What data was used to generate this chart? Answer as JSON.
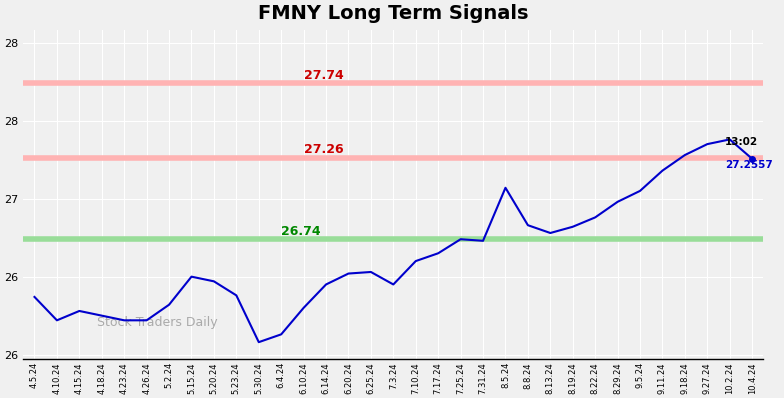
{
  "title": "FMNY Long Term Signals",
  "title_fontsize": 14,
  "title_fontweight": "bold",
  "watermark": "Stock Traders Daily",
  "line_color": "#0000cc",
  "line_width": 1.5,
  "hline_upper": 27.74,
  "hline_middle": 27.26,
  "hline_lower": 26.74,
  "hline_upper_color": "#ffb3b3",
  "hline_middle_color": "#ffb3b3",
  "hline_lower_color": "#99dd99",
  "hline_lw": 6,
  "label_upper": "27.74",
  "label_upper_color": "#cc0000",
  "label_middle": "27.26",
  "label_middle_color": "#cc0000",
  "label_lower": "26.74",
  "label_lower_color": "#008800",
  "annotation_time": "13:02",
  "annotation_value": "27.2557",
  "annotation_color_time": "#000000",
  "annotation_color_value": "#0000cc",
  "dot_color": "#0000cc",
  "ylim": [
    25.97,
    28.08
  ],
  "yticks": [
    26.0,
    26.5,
    27.0,
    27.5,
    28.0
  ],
  "bg_color": "#f0f0f0",
  "grid_color": "#ffffff",
  "x_labels": [
    "4.5.24",
    "4.10.24",
    "4.15.24",
    "4.18.24",
    "4.23.24",
    "4.26.24",
    "5.2.24",
    "5.15.24",
    "5.20.24",
    "5.23.24",
    "5.30.24",
    "6.4.24",
    "6.10.24",
    "6.14.24",
    "6.20.24",
    "6.25.24",
    "7.3.24",
    "7.10.24",
    "7.17.24",
    "7.25.24",
    "7.31.24",
    "8.5.24",
    "8.8.24",
    "8.13.24",
    "8.19.24",
    "8.22.24",
    "8.29.24",
    "9.5.24",
    "9.11.24",
    "9.18.24",
    "9.27.24",
    "10.2.24",
    "10.4.24"
  ],
  "series": [
    26.37,
    26.22,
    26.28,
    26.25,
    26.22,
    26.22,
    26.32,
    26.5,
    26.47,
    26.38,
    26.08,
    26.13,
    26.3,
    26.45,
    26.52,
    26.53,
    26.45,
    26.6,
    26.65,
    26.74,
    26.73,
    27.07,
    26.83,
    26.78,
    26.82,
    26.88,
    26.98,
    27.05,
    27.18,
    27.28,
    27.35,
    27.38,
    27.2557
  ]
}
